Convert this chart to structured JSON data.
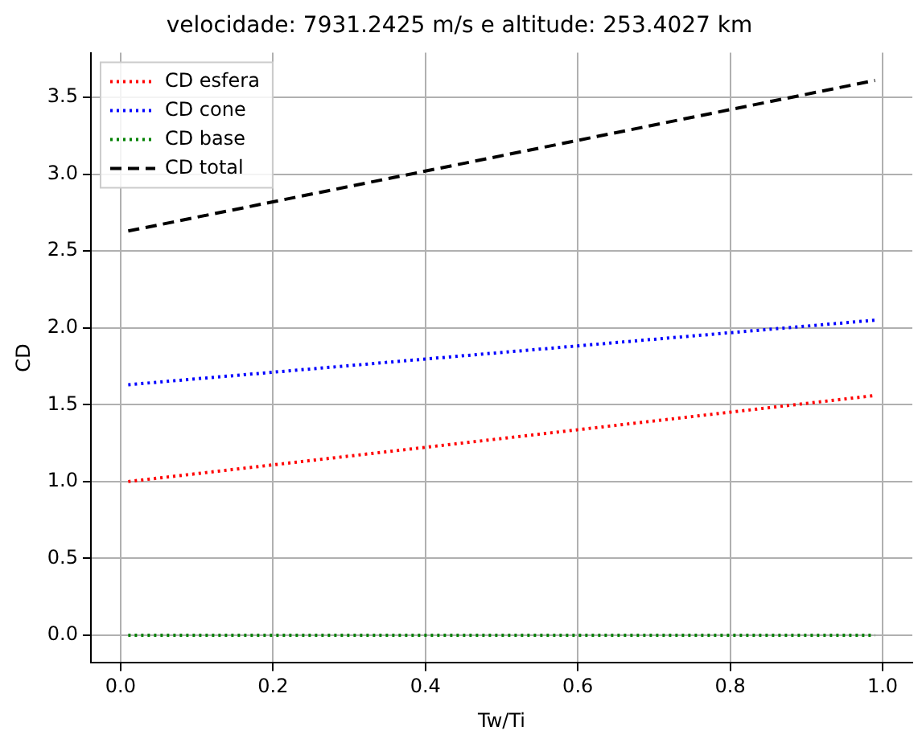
{
  "chart_data": {
    "type": "line",
    "title": "velocidade: 7931.2425 m/s e altitude: 253.4027 km",
    "xlabel": "Tw/Ti",
    "ylabel": "CD",
    "x": [
      0.01,
      0.99
    ],
    "series": [
      {
        "name": "CD esfera",
        "color": "#ff0000",
        "values": [
          1.0,
          1.56
        ],
        "line_style": "dotted"
      },
      {
        "name": "CD cone",
        "color": "#0000ff",
        "values": [
          1.63,
          2.05
        ],
        "line_style": "dotted"
      },
      {
        "name": "CD base",
        "color": "#008000",
        "values": [
          0.0,
          0.0
        ],
        "line_style": "dotted"
      },
      {
        "name": "CD total",
        "color": "#000000",
        "values": [
          2.63,
          3.61
        ],
        "line_style": "dashed"
      }
    ],
    "xlim": [
      -0.039,
      1.039
    ],
    "xticks": [
      {
        "value": 0,
        "label": "0.0"
      },
      0.2,
      0.4,
      0.6,
      0.8,
      {
        "value": 1,
        "label": "1.0"
      }
    ],
    "ylim": [
      -0.18,
      3.79
    ],
    "yticks": [
      {
        "value": 0,
        "label": "0.0"
      },
      0.5,
      {
        "value": 1,
        "label": "1.0"
      },
      1.5,
      {
        "value": 2,
        "label": "2.0"
      },
      2.5,
      {
        "value": 3,
        "label": "3.0"
      },
      3.5
    ],
    "grid": true,
    "legend": "top left",
    "marker": "none"
  }
}
